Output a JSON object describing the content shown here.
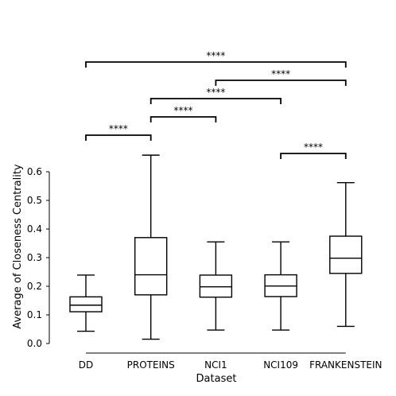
{
  "chart_data": {
    "type": "box",
    "xlabel": "Dataset",
    "ylabel": "Average of Closeness Centrality",
    "ylim": [
      0,
      0.6
    ],
    "yticks": [
      0.0,
      0.1,
      0.2,
      0.3,
      0.4,
      0.5,
      0.6
    ],
    "ytick_labels": [
      "0.0",
      "0.1",
      "0.2",
      "0.3",
      "0.4",
      "0.5",
      "0.6"
    ],
    "grid": false,
    "categories": [
      "DD",
      "PROTEINS",
      "NCI1",
      "NCI109",
      "FRANKENSTEIN"
    ],
    "boxes": [
      {
        "name": "DD",
        "whislo": 0.043,
        "q1": 0.111,
        "med": 0.134,
        "q3": 0.163,
        "whishi": 0.239
      },
      {
        "name": "PROTEINS",
        "whislo": 0.015,
        "q1": 0.17,
        "med": 0.24,
        "q3": 0.37,
        "whishi": 0.658
      },
      {
        "name": "NCI1",
        "whislo": 0.047,
        "q1": 0.162,
        "med": 0.198,
        "q3": 0.239,
        "whishi": 0.355
      },
      {
        "name": "NCI109",
        "whislo": 0.047,
        "q1": 0.164,
        "med": 0.201,
        "q3": 0.24,
        "whishi": 0.355
      },
      {
        "name": "FRANKENSTEIN",
        "whislo": 0.06,
        "q1": 0.245,
        "med": 0.298,
        "q3": 0.375,
        "whishi": 0.562
      }
    ],
    "significance": [
      {
        "from": "DD",
        "to": "FRANKENSTEIN",
        "label": "****"
      },
      {
        "from": "NCI1",
        "to": "FRANKENSTEIN",
        "label": "****"
      },
      {
        "from": "PROTEINS",
        "to": "NCI109",
        "label": "****"
      },
      {
        "from": "PROTEINS",
        "to": "NCI1",
        "label": "****"
      },
      {
        "from": "DD",
        "to": "PROTEINS",
        "label": "****"
      },
      {
        "from": "NCI109",
        "to": "FRANKENSTEIN",
        "label": "****"
      }
    ]
  }
}
